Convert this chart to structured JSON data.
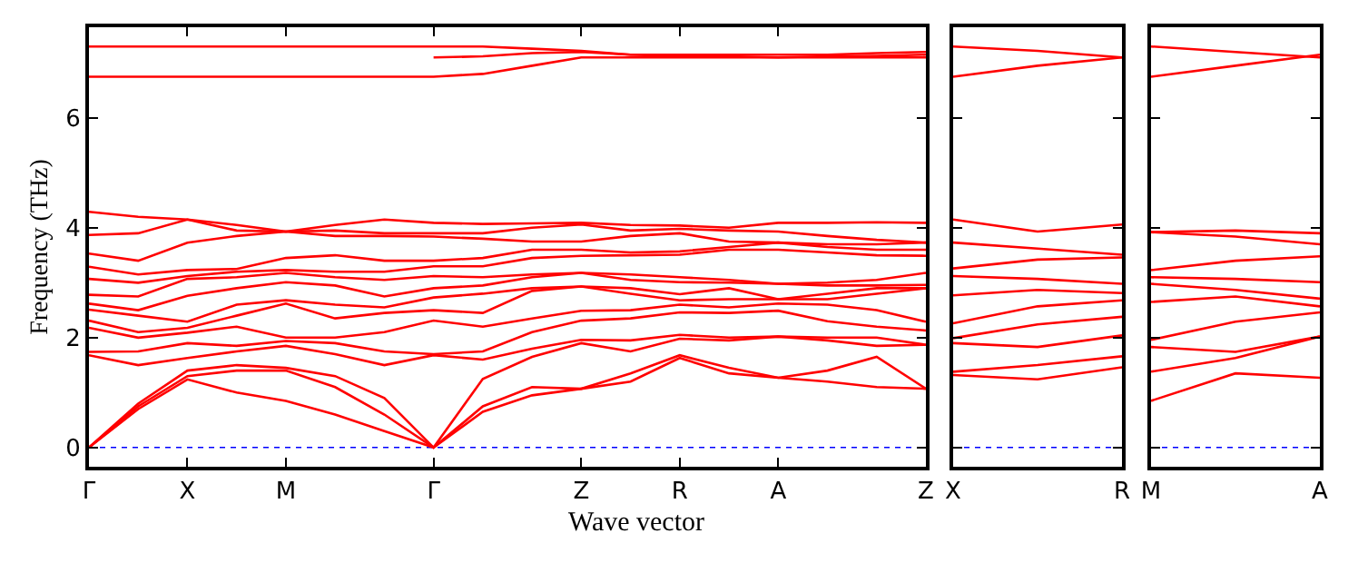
{
  "chart_data": [
    {
      "type": "line",
      "xlabel": "Wave vector",
      "ylabel": "Frequency (THz)",
      "ylim": [
        -0.35,
        7.65
      ],
      "yticks": [
        0,
        2,
        4,
        6
      ],
      "categories": [
        "Γ",
        null,
        "X",
        null,
        "M",
        null,
        null,
        "Γ",
        null,
        null,
        "Z",
        null,
        "R",
        null,
        "A",
        null,
        null,
        "Z"
      ],
      "marker": "none",
      "line_style": "solid",
      "ref_lines": [
        {
          "axis": "y",
          "value": 0,
          "color": "#0000ff",
          "line_style": "dotted"
        }
      ],
      "series": [
        {
          "color": "#ff0000",
          "values": [
            0,
            0.7,
            1.24,
            1.0,
            0.85,
            0.6,
            0.3,
            0,
            0.65,
            0.95,
            1.07,
            1.2,
            1.63,
            1.35,
            1.27,
            1.2,
            1.1,
            1.07
          ]
        },
        {
          "color": "#ff0000",
          "values": [
            0,
            0.75,
            1.3,
            1.4,
            1.4,
            1.1,
            0.6,
            0,
            0.75,
            1.1,
            1.07,
            1.35,
            1.68,
            1.45,
            1.27,
            1.4,
            1.65,
            1.07
          ]
        },
        {
          "color": "#ff0000",
          "values": [
            0,
            0.8,
            1.4,
            1.5,
            1.45,
            1.3,
            0.9,
            0,
            1.25,
            1.65,
            1.9,
            1.75,
            1.98,
            1.95,
            2.02,
            1.95,
            1.85,
            1.87
          ]
        },
        {
          "color": "#ff0000",
          "values": [
            1.68,
            1.5,
            1.63,
            1.75,
            1.85,
            1.7,
            1.5,
            1.68,
            1.6,
            1.8,
            1.96,
            1.95,
            2.05,
            2.0,
            2.02,
            2.0,
            2.0,
            1.87
          ]
        },
        {
          "color": "#ff0000",
          "values": [
            1.74,
            1.75,
            1.9,
            1.85,
            1.94,
            1.9,
            1.75,
            1.7,
            1.75,
            2.1,
            2.31,
            2.35,
            2.46,
            2.45,
            2.49,
            2.3,
            2.2,
            2.13
          ]
        },
        {
          "color": "#ff0000",
          "values": [
            2.18,
            2.0,
            2.09,
            2.2,
            2.0,
            2.0,
            2.1,
            2.31,
            2.2,
            2.35,
            2.49,
            2.5,
            2.6,
            2.55,
            2.62,
            2.6,
            2.5,
            2.29
          ]
        },
        {
          "color": "#ff0000",
          "values": [
            2.31,
            2.1,
            2.18,
            2.4,
            2.62,
            2.35,
            2.45,
            2.5,
            2.45,
            2.85,
            2.93,
            2.8,
            2.68,
            2.7,
            2.7,
            2.7,
            2.8,
            2.9
          ]
        },
        {
          "color": "#ff0000",
          "values": [
            2.51,
            2.4,
            2.29,
            2.6,
            2.68,
            2.6,
            2.55,
            2.73,
            2.8,
            2.9,
            2.93,
            2.9,
            2.79,
            2.9,
            2.7,
            2.8,
            2.9,
            2.9
          ]
        },
        {
          "color": "#ff0000",
          "values": [
            2.62,
            2.5,
            2.76,
            2.9,
            3.01,
            2.95,
            2.75,
            2.9,
            2.95,
            3.1,
            3.18,
            3.05,
            3.01,
            3.0,
            2.98,
            2.95,
            2.95,
            2.96
          ]
        },
        {
          "color": "#ff0000",
          "values": [
            2.78,
            2.75,
            3.07,
            3.1,
            3.18,
            3.1,
            3.05,
            3.12,
            3.1,
            3.15,
            3.18,
            3.15,
            3.1,
            3.05,
            2.98,
            3.0,
            3.05,
            3.18
          ]
        },
        {
          "color": "#ff0000",
          "values": [
            3.07,
            3.0,
            3.12,
            3.2,
            3.23,
            3.2,
            3.2,
            3.3,
            3.3,
            3.45,
            3.49,
            3.5,
            3.51,
            3.6,
            3.6,
            3.55,
            3.5,
            3.49
          ]
        },
        {
          "color": "#ff0000",
          "values": [
            3.29,
            3.15,
            3.23,
            3.25,
            3.45,
            3.5,
            3.4,
            3.4,
            3.45,
            3.6,
            3.6,
            3.55,
            3.57,
            3.65,
            3.73,
            3.65,
            3.6,
            3.6
          ]
        },
        {
          "color": "#ff0000",
          "values": [
            3.53,
            3.4,
            3.73,
            3.85,
            3.93,
            3.85,
            3.85,
            3.84,
            3.8,
            3.75,
            3.75,
            3.85,
            3.9,
            3.75,
            3.73,
            3.7,
            3.7,
            3.73
          ]
        },
        {
          "color": "#ff0000",
          "values": [
            3.87,
            3.9,
            4.15,
            3.95,
            3.93,
            3.95,
            3.9,
            3.9,
            3.9,
            4.0,
            4.06,
            3.95,
            3.98,
            3.95,
            3.93,
            3.85,
            3.78,
            3.73
          ]
        },
        {
          "color": "#ff0000",
          "values": [
            4.29,
            4.2,
            4.15,
            4.05,
            3.93,
            4.05,
            4.15,
            4.09,
            4.07,
            4.08,
            4.09,
            4.05,
            4.04,
            4.0,
            4.09,
            4.09,
            4.1,
            4.09
          ]
        },
        {
          "color": "#ff0000",
          "values": [
            6.75,
            6.75,
            6.75,
            6.75,
            6.75,
            6.75,
            6.75,
            6.75,
            6.8,
            6.95,
            7.1,
            7.1,
            7.1,
            7.1,
            7.1,
            7.1,
            7.1,
            7.1
          ]
        },
        {
          "color": "#ff0000",
          "values": [
            7.3,
            7.3,
            7.3,
            7.3,
            7.3,
            7.3,
            7.3,
            7.3,
            7.3,
            7.26,
            7.22,
            7.15,
            7.15,
            7.15,
            7.15,
            7.15,
            7.18,
            7.2
          ]
        },
        {
          "color": "#ff0000",
          "values": [
            null,
            null,
            null,
            null,
            null,
            null,
            null,
            7.1,
            7.12,
            7.18,
            7.2,
            7.15,
            7.12,
            7.12,
            7.1,
            7.12,
            7.13,
            7.15
          ]
        }
      ]
    },
    {
      "type": "line",
      "ylim": [
        -0.35,
        7.65
      ],
      "yticks": [
        0,
        2,
        4,
        6
      ],
      "tick_labels": "x",
      "categories": [
        "X",
        null,
        "R"
      ],
      "marker": "none",
      "line_style": "solid",
      "ref_lines": [
        {
          "axis": "y",
          "value": 0,
          "color": "#0000ff",
          "line_style": "dotted"
        }
      ],
      "series": [
        {
          "color": "#ff0000",
          "values": [
            1.32,
            1.24,
            1.46
          ]
        },
        {
          "color": "#ff0000",
          "values": [
            1.38,
            1.5,
            1.66
          ]
        },
        {
          "color": "#ff0000",
          "values": [
            1.9,
            1.83,
            2.04
          ]
        },
        {
          "color": "#ff0000",
          "values": [
            1.99,
            2.24,
            2.38
          ]
        },
        {
          "color": "#ff0000",
          "values": [
            2.26,
            2.57,
            2.68
          ]
        },
        {
          "color": "#ff0000",
          "values": [
            2.77,
            2.87,
            2.81
          ]
        },
        {
          "color": "#ff0000",
          "values": [
            3.12,
            3.07,
            2.98
          ]
        },
        {
          "color": "#ff0000",
          "values": [
            3.26,
            3.42,
            3.46
          ]
        },
        {
          "color": "#ff0000",
          "values": [
            3.73,
            3.62,
            3.51
          ]
        },
        {
          "color": "#ff0000",
          "values": [
            4.15,
            3.93,
            4.06
          ]
        },
        {
          "color": "#ff0000",
          "values": [
            6.75,
            6.95,
            7.1
          ]
        },
        {
          "color": "#ff0000",
          "values": [
            7.3,
            7.22,
            7.1
          ]
        }
      ]
    },
    {
      "type": "line",
      "ylim": [
        -0.35,
        7.65
      ],
      "yticks": [
        0,
        2,
        4,
        6
      ],
      "tick_labels": "x",
      "categories": [
        "M",
        null,
        "A"
      ],
      "marker": "none",
      "line_style": "solid",
      "ref_lines": [
        {
          "axis": "y",
          "value": 0,
          "color": "#0000ff",
          "line_style": "dotted"
        }
      ],
      "series": [
        {
          "color": "#ff0000",
          "values": [
            0.85,
            1.35,
            1.27
          ]
        },
        {
          "color": "#ff0000",
          "values": [
            1.38,
            1.63,
            2.02
          ]
        },
        {
          "color": "#ff0000",
          "values": [
            1.83,
            1.74,
            2.02
          ]
        },
        {
          "color": "#ff0000",
          "values": [
            1.96,
            2.29,
            2.46
          ]
        },
        {
          "color": "#ff0000",
          "values": [
            2.65,
            2.75,
            2.57
          ]
        },
        {
          "color": "#ff0000",
          "values": [
            2.98,
            2.87,
            2.71
          ]
        },
        {
          "color": "#ff0000",
          "values": [
            3.1,
            3.07,
            3.01
          ]
        },
        {
          "color": "#ff0000",
          "values": [
            3.23,
            3.4,
            3.48
          ]
        },
        {
          "color": "#ff0000",
          "values": [
            3.92,
            3.84,
            3.7
          ]
        },
        {
          "color": "#ff0000",
          "values": [
            3.92,
            3.95,
            3.9
          ]
        },
        {
          "color": "#ff0000",
          "values": [
            6.75,
            6.95,
            7.15
          ]
        },
        {
          "color": "#ff0000",
          "values": [
            7.3,
            7.2,
            7.1
          ]
        }
      ]
    }
  ]
}
